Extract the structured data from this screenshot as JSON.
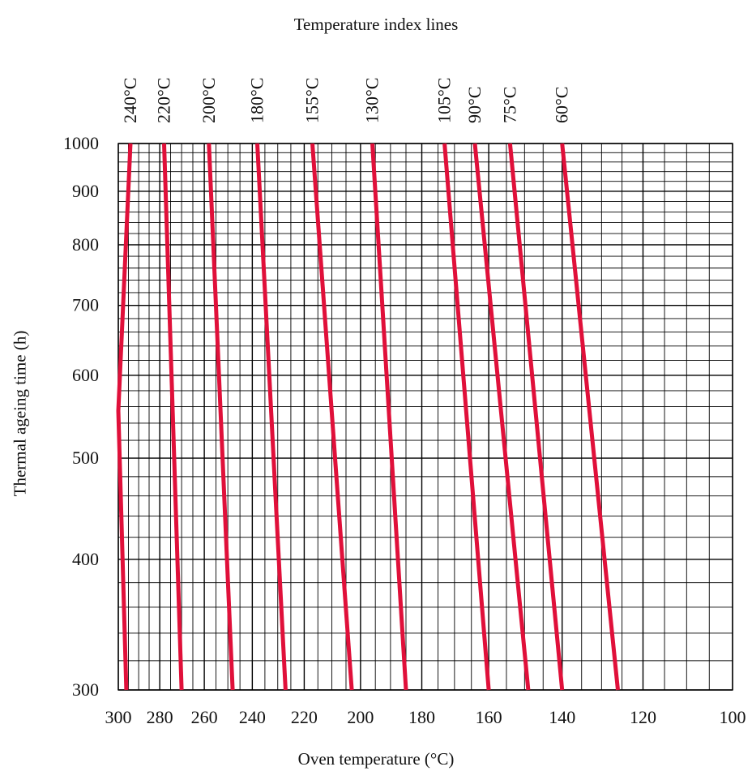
{
  "chart_data": {
    "type": "line",
    "title": "Temperature index lines",
    "xlabel": "Oven temperature (°C)",
    "ylabel": "Thermal ageing time (h)",
    "x_reversed": true,
    "x_scale": "reciprocal",
    "y_scale": "log",
    "xlim": [
      300,
      100
    ],
    "ylim": [
      300,
      1000
    ],
    "x_ticks": [
      300,
      280,
      260,
      240,
      220,
      200,
      180,
      160,
      140,
      120,
      100
    ],
    "y_ticks": [
      300,
      400,
      500,
      600,
      700,
      800,
      900,
      1000
    ],
    "grid": true,
    "line_color": "#e0103a",
    "series": [
      {
        "name": "240°C",
        "points": [
          [
            296,
            300
          ],
          [
            300,
            555
          ],
          [
            294,
            1000
          ]
        ]
      },
      {
        "name": "220°C",
        "points": [
          [
            270,
            300
          ],
          [
            278,
            1000
          ]
        ]
      },
      {
        "name": "200°C",
        "points": [
          [
            248,
            300
          ],
          [
            258,
            1000
          ]
        ]
      },
      {
        "name": "180°C",
        "points": [
          [
            227,
            300
          ],
          [
            238,
            1000
          ]
        ]
      },
      {
        "name": "155°C",
        "points": [
          [
            203,
            300
          ],
          [
            217,
            1000
          ]
        ]
      },
      {
        "name": "130°C",
        "points": [
          [
            185,
            300
          ],
          [
            196,
            1000
          ]
        ]
      },
      {
        "name": "105°C",
        "points": [
          [
            160,
            300
          ],
          [
            173,
            1000
          ]
        ]
      },
      {
        "name": "90°C",
        "points": [
          [
            149,
            300
          ],
          [
            164,
            1000
          ]
        ]
      },
      {
        "name": "75°C",
        "points": [
          [
            140,
            300
          ],
          [
            154,
            1000
          ]
        ]
      },
      {
        "name": "60°C",
        "points": [
          [
            126,
            300
          ],
          [
            140,
            1000
          ]
        ]
      }
    ]
  }
}
